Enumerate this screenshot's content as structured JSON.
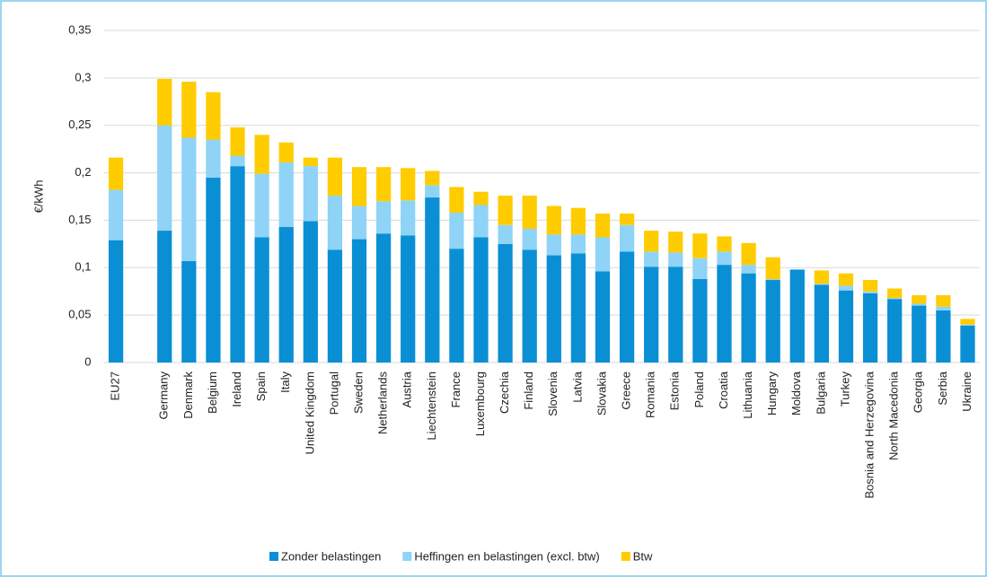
{
  "chart_data": {
    "type": "stacked_bar",
    "y_label": "€/kWh",
    "categories": [
      "EU27",
      null,
      "Germany",
      "Denmark",
      "Belgium",
      "Ireland",
      "Spain",
      "Italy",
      "United Kingdom",
      "Portugal",
      "Sweden",
      "Netherlands",
      "Austria",
      "Liechtenstein",
      "France",
      "Luxembourg",
      "Czechia",
      "Finland",
      "Slovenia",
      "Latvia",
      "Slovakia",
      "Greece",
      "Romania",
      "Estonia",
      "Poland",
      "Croatia",
      "Lithuania",
      "Hungary",
      "Moldova",
      "Bulgaria",
      "Turkey",
      "Bosnia and Herzegovina",
      "North Macedonia",
      "Georgia",
      "Serbia",
      "Ukraine"
    ],
    "series": [
      {
        "name": "Zonder belastingen",
        "color": "#0a8fd4",
        "values": [
          0.129,
          null,
          0.139,
          0.107,
          0.195,
          0.207,
          0.132,
          0.143,
          0.149,
          0.119,
          0.13,
          0.136,
          0.134,
          0.174,
          0.12,
          0.132,
          0.125,
          0.119,
          0.113,
          0.115,
          0.096,
          0.117,
          0.101,
          0.101,
          0.088,
          0.103,
          0.094,
          0.087,
          0.098,
          0.082,
          0.076,
          0.073,
          0.067,
          0.06,
          0.055,
          0.039
        ]
      },
      {
        "name": "Heffingen en belastingen (excl. btw)",
        "color": "#8fd3f7",
        "values": [
          0.053,
          null,
          0.111,
          0.13,
          0.04,
          0.011,
          0.067,
          0.068,
          0.058,
          0.057,
          0.035,
          0.034,
          0.037,
          0.013,
          0.038,
          0.034,
          0.02,
          0.022,
          0.022,
          0.02,
          0.036,
          0.028,
          0.016,
          0.015,
          0.022,
          0.014,
          0.009,
          0.001,
          0,
          0.001,
          0.005,
          0.002,
          0.001,
          0.002,
          0.004,
          0.001
        ]
      },
      {
        "name": "Btw",
        "color": "#ffcc00",
        "values": [
          0.034,
          null,
          0.049,
          0.059,
          0.05,
          0.03,
          0.041,
          0.021,
          0.009,
          0.04,
          0.041,
          0.036,
          0.034,
          0.015,
          0.027,
          0.014,
          0.031,
          0.035,
          0.03,
          0.028,
          0.025,
          0.012,
          0.022,
          0.022,
          0.026,
          0.016,
          0.023,
          0.023,
          0,
          0.014,
          0.013,
          0.012,
          0.01,
          0.009,
          0.012,
          0.006
        ]
      }
    ],
    "ylim": [
      0,
      0.35
    ],
    "yticks": [
      0,
      {
        "value": 0.05,
        "label": "0,05"
      },
      {
        "value": 0.1,
        "label": "0,1"
      },
      {
        "value": 0.15,
        "label": "0,15"
      },
      {
        "value": 0.2,
        "label": "0,2"
      },
      {
        "value": 0.25,
        "label": "0,25"
      },
      {
        "value": 0.3,
        "label": "0,3"
      },
      {
        "value": 0.35,
        "label": "0,35"
      }
    ],
    "grid": true,
    "legend": "bottom"
  }
}
